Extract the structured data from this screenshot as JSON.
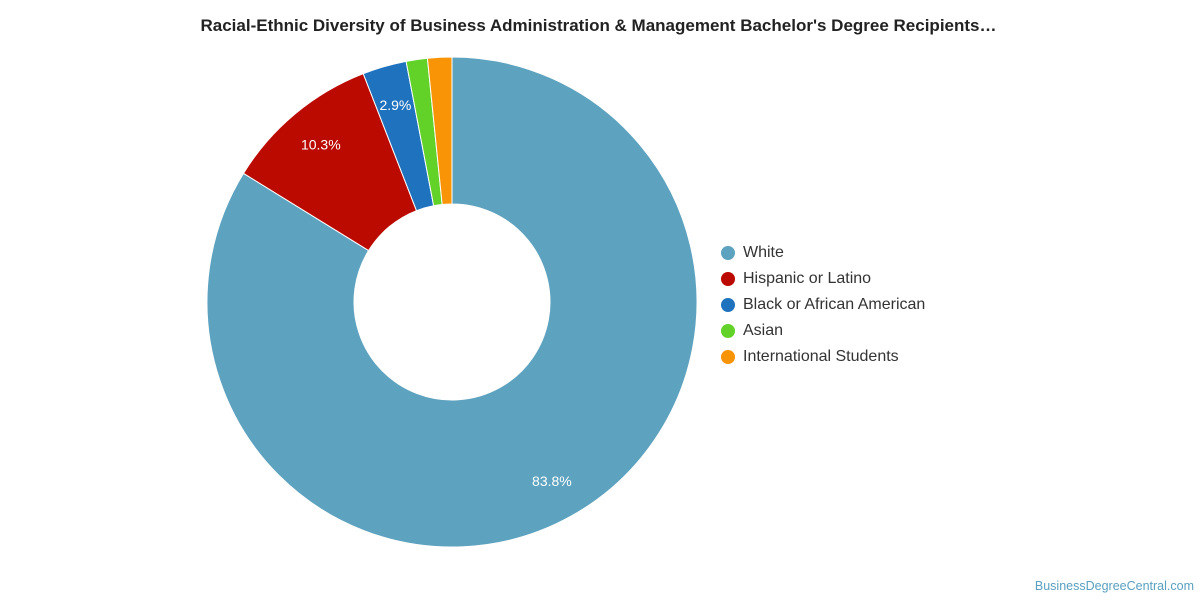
{
  "chart_data": {
    "type": "pie",
    "style": "donut",
    "title": "Racial-Ethnic Diversity of Business Administration & Management Bachelor's Degree Recipients…",
    "categories": [
      "White",
      "Hispanic or Latino",
      "Black or African American",
      "Asian",
      "International Students"
    ],
    "values": [
      83.8,
      10.3,
      2.9,
      1.4,
      1.6
    ],
    "data_labels": [
      "83.8%",
      "10.3%",
      "2.9%",
      "",
      ""
    ],
    "colors": [
      "#5da2bf",
      "#bb0a00",
      "#1f72be",
      "#62d229",
      "#f99407"
    ],
    "legend_position": "right"
  },
  "source": "BusinessDegreeCentral.com"
}
